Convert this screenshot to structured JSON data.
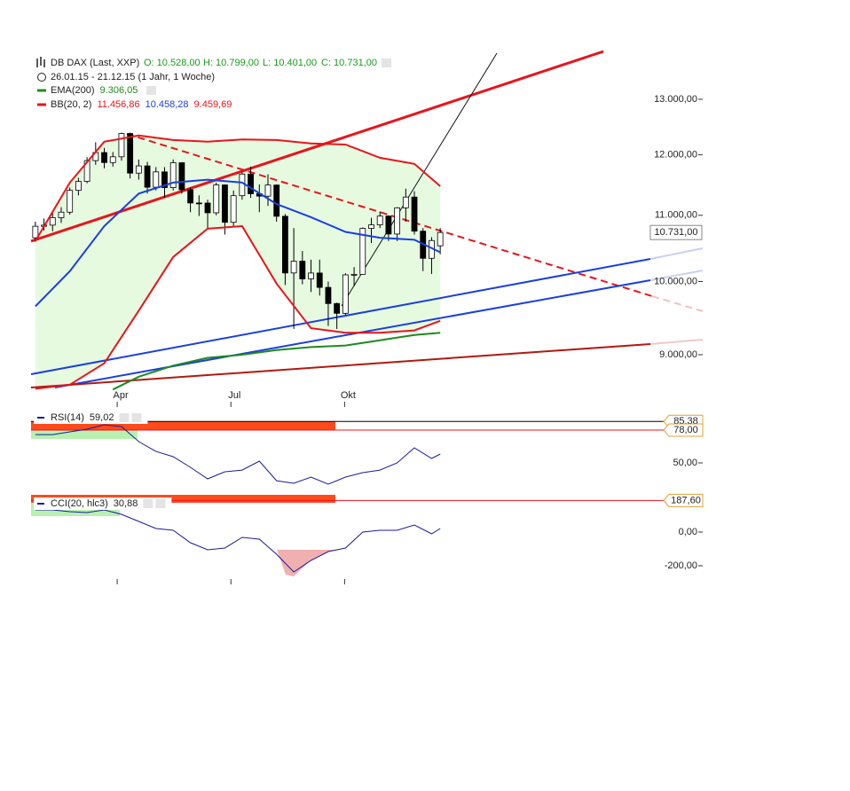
{
  "header": {
    "title": "DB DAX (Last, XXP)",
    "quote": [
      "O: 10.528,00",
      "H: 10.799,00",
      "L: 10.401,00",
      "C: 10.731,00"
    ],
    "period": "26.01.15 - 21.12.15 (1 Jahr, 1 Woche)"
  },
  "chart_data": [
    {
      "type": "candlestick",
      "open": [
        10650,
        10828,
        10846,
        10963,
        11050,
        11402,
        11551,
        11901,
        12040,
        11868,
        11967,
        12375,
        11689,
        11811,
        11454,
        11710,
        11447,
        11865,
        11413,
        11197,
        11196,
        11040,
        11492,
        10890,
        11315,
        11673,
        11347,
        11308,
        11490,
        10985,
        10124,
        10298,
        10038,
        10123,
        9916,
        9688,
        9553,
        10096,
        10104,
        10795,
        10850,
        10988,
        10708,
        11119,
        11293,
        10752,
        10340,
        10528
      ],
      "high": [
        10900,
        10950,
        11050,
        11130,
        11450,
        11610,
        11960,
        12220,
        12120,
        12050,
        12390,
        12390,
        11920,
        11880,
        11790,
        11790,
        11920,
        11870,
        11450,
        11320,
        11250,
        11530,
        11500,
        11400,
        11700,
        11800,
        11500,
        11670,
        11500,
        11020,
        10800,
        10450,
        10320,
        10320,
        10000,
        9700,
        10120,
        10210,
        10810,
        10960,
        11060,
        11000,
        11130,
        11430,
        11390,
        10800,
        10660,
        10799
      ],
      "low": [
        10590,
        10760,
        10750,
        10880,
        11010,
        11320,
        11520,
        11830,
        11770,
        11800,
        11900,
        11600,
        11580,
        11350,
        11400,
        11280,
        11400,
        11350,
        11050,
        10990,
        10800,
        11000,
        10700,
        10810,
        11250,
        11280,
        11050,
        11150,
        10900,
        9950,
        9340,
        9960,
        9850,
        9800,
        9380,
        9340,
        9530,
        9930,
        10100,
        10570,
        10800,
        10600,
        10600,
        10900,
        10700,
        10150,
        10110,
        10401
      ],
      "close": [
        10828,
        10846,
        10963,
        11050,
        11402,
        11551,
        11901,
        12040,
        11868,
        11967,
        12375,
        11689,
        11811,
        11454,
        11710,
        11447,
        11865,
        11413,
        11197,
        11196,
        11040,
        11492,
        10890,
        11315,
        11673,
        11347,
        11308,
        11490,
        10985,
        10124,
        10298,
        10038,
        10123,
        9916,
        9688,
        9553,
        10096,
        10104,
        10795,
        10850,
        10988,
        10708,
        11119,
        11293,
        10752,
        10340,
        10608,
        10731
      ],
      "up_color": "#ffffff",
      "down_color": "#000000",
      "fill_color": "#e6fae0",
      "xlim": [
        -0.5,
        71.6
      ],
      "xticks": [
        {
          "value": 9.5,
          "label": "Apr"
        },
        {
          "value": 22.7,
          "label": "Jul"
        },
        {
          "value": 35.9,
          "label": "Okt"
        }
      ],
      "ylim": [
        8390,
        13980
      ],
      "log_scale": true,
      "grid": false,
      "yticks": [
        {
          "value": 9000,
          "label": "9.000,00"
        },
        {
          "value": 10000,
          "label": "10.000,00"
        },
        {
          "value": 11000,
          "label": "11.000,00"
        },
        {
          "value": 12000,
          "label": "12.000,00"
        },
        {
          "value": 13000,
          "label": "13.000,00"
        }
      ],
      "last_price": {
        "value": 10731,
        "label": "10.731,00"
      },
      "series": [
        {
          "name": "EMA(200)",
          "color": "#1e8a1e",
          "legend_value": "9.306,05",
          "x": [
            9,
            12,
            16,
            20,
            24,
            28,
            32,
            36,
            40,
            44,
            47
          ],
          "values": [
            8560,
            8720,
            8860,
            8960,
            9000,
            9060,
            9100,
            9120,
            9190,
            9260,
            9290
          ]
        },
        {
          "name": "BB(20, 2)",
          "color": "#e8141b",
          "legend_value": "11.456,86",
          "x": [
            0,
            4,
            8,
            12,
            16,
            20,
            24,
            28,
            32,
            36,
            40,
            44,
            47
          ],
          "values": [
            10600,
            11530,
            12230,
            12340,
            12260,
            12230,
            12270,
            12260,
            12200,
            12180,
            11950,
            11845,
            11470
          ]
        },
        {
          "color": "#1a3fe0",
          "legend_value": "10.458,28",
          "x": [
            0,
            4,
            8,
            12,
            16,
            20,
            24,
            28,
            32,
            36,
            40,
            44,
            47
          ],
          "values": [
            9650,
            10150,
            10830,
            11350,
            11530,
            11580,
            11530,
            11180,
            10970,
            10740,
            10650,
            10620,
            10430
          ]
        },
        {
          "color": "#e8141b",
          "legend_value": "9.459,69",
          "x": [
            0,
            4,
            8,
            12,
            16,
            20,
            24,
            28,
            32,
            36,
            40,
            44,
            47
          ],
          "values": [
            8570,
            8620,
            8890,
            9590,
            10360,
            10790,
            10830,
            9970,
            9350,
            9290,
            9290,
            9320,
            9450
          ]
        }
      ]
    },
    {
      "type": "line",
      "title": "RSI(14)",
      "legend_value": "59,02",
      "color": "#1a1aa0",
      "x": [
        0,
        2,
        4,
        6,
        8,
        10,
        12,
        14,
        16,
        18,
        20,
        22,
        24,
        26,
        28,
        30,
        32,
        34,
        36,
        38,
        40,
        42,
        44,
        46,
        47
      ],
      "values": [
        74.2,
        74.2,
        76.5,
        78.8,
        82.6,
        81.1,
        68.2,
        59.8,
        55.3,
        46.2,
        36.4,
        42.4,
        43.9,
        51.5,
        34.8,
        32.6,
        37.9,
        31.8,
        37.9,
        41.7,
        43.9,
        50,
        62.9,
        53.8,
        57.6
      ],
      "xlim": [
        -0.5,
        71.6
      ],
      "ylim": [
        25,
        94.7
      ],
      "yticks": [
        {
          "value": 50,
          "label": "50,00"
        }
      ],
      "levels": [
        {
          "value": 85.38,
          "label": "85,38",
          "color": "#000000"
        },
        {
          "value": 78,
          "label": "78,00",
          "color": "#e8141b"
        }
      ]
    },
    {
      "type": "line",
      "title": "CCI(20, hlc3)",
      "legend_value": "30,88",
      "color": "#1a1aa0",
      "x": [
        0,
        2,
        4,
        6,
        8,
        10,
        12,
        14,
        16,
        18,
        20,
        22,
        24,
        26,
        28,
        30,
        32,
        34,
        36,
        38,
        40,
        42,
        44,
        46,
        47
      ],
      "values": [
        131.6,
        131.6,
        121,
        115.8,
        131.6,
        105.3,
        63.2,
        21.1,
        10.5,
        -63.2,
        -105.3,
        -94.7,
        -31.6,
        -42.1,
        -131.6,
        -236.8,
        -168.4,
        -115.8,
        -94.7,
        0,
        10.5,
        10.5,
        42.1,
        -10.5,
        21.1
      ],
      "xlim": [
        -0.5,
        71.6
      ],
      "ylim": [
        -289.5,
        210.5
      ],
      "yticks": [
        {
          "value": 0,
          "label": "0,00"
        },
        {
          "value": -200,
          "label": "-200,00"
        }
      ],
      "levels": [
        {
          "value": 187.6,
          "label": "187,60",
          "color": "#e8141b"
        }
      ]
    }
  ]
}
